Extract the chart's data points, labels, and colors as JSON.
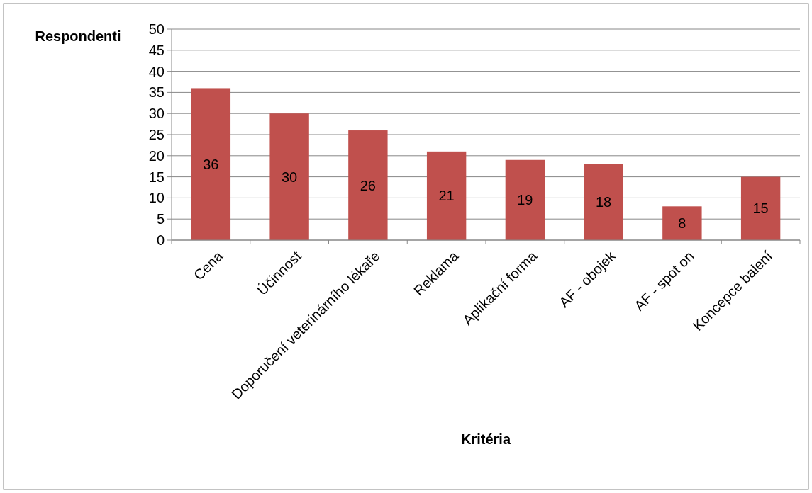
{
  "chart_data": {
    "type": "bar",
    "xlabel": "Kritéria",
    "ylabel": "Respondenti",
    "categories": [
      "Cena",
      "Účinnost",
      "Doporučení veterinárního lékaře",
      "Reklama",
      "Aplikační forma",
      "AF - obojek",
      "AF - spot on",
      "Koncepce balení"
    ],
    "values": [
      36,
      30,
      26,
      21,
      19,
      18,
      8,
      15
    ],
    "color": "#c0504d",
    "ylim": [
      0,
      50
    ],
    "yticks": [
      0,
      5,
      10,
      15,
      20,
      25,
      30,
      35,
      40,
      45,
      50
    ],
    "grid": "y",
    "data_labels": true
  }
}
